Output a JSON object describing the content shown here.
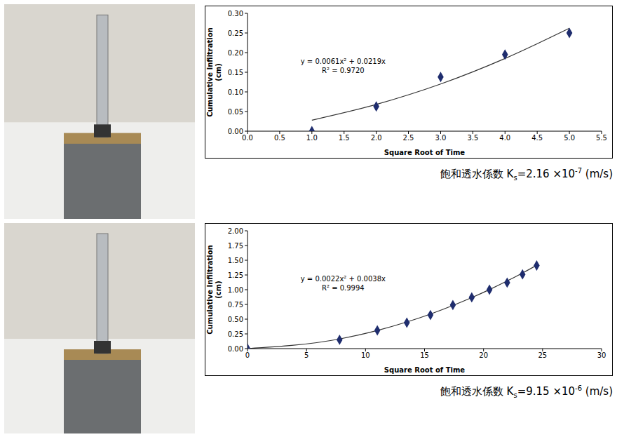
{
  "chart_data": [
    {
      "type": "scatter",
      "x_label": "Square Root of Time",
      "y_label": "Cumulative Infiltration (cm)",
      "x": [
        1,
        2,
        3,
        4,
        5
      ],
      "series": [
        {
          "type": "scatter",
          "color": "#1f2d6e",
          "marker": "diamond",
          "values": [
            0,
            0.063,
            0.138,
            0.195,
            0.25
          ]
        },
        {
          "type": "line",
          "color": "#333333",
          "line_style": "solid",
          "values": [
            0.028,
            0.068,
            0.12,
            0.185,
            0.262
          ]
        }
      ],
      "xlim": [
        0,
        5.5
      ],
      "xticks": [
        {
          "value": 0,
          "label": "0.0"
        },
        {
          "value": 0.5,
          "label": "0.5"
        },
        {
          "value": 1,
          "label": "1.0"
        },
        {
          "value": 1.5,
          "label": "1.5"
        },
        {
          "value": 2,
          "label": "2.0"
        },
        {
          "value": 2.5,
          "label": "2.5"
        },
        {
          "value": 3,
          "label": "3.0"
        },
        {
          "value": 3.5,
          "label": "3.5"
        },
        {
          "value": 4,
          "label": "4.0"
        },
        {
          "value": 4.5,
          "label": "4.5"
        },
        {
          "value": 5,
          "label": "5.0"
        },
        {
          "value": 5.5,
          "label": "5.5"
        }
      ],
      "ylim": [
        0,
        0.3
      ],
      "yticks": [
        {
          "value": 0,
          "label": "0.00"
        },
        {
          "value": 0.05,
          "label": "0.05"
        },
        {
          "value": 0.1,
          "label": "0.10"
        },
        {
          "value": 0.15,
          "label": "0.15"
        },
        {
          "value": 0.2,
          "label": "0.20"
        },
        {
          "value": 0.25,
          "label": "0.25"
        },
        {
          "value": 0.3,
          "label": "0.30"
        }
      ],
      "grid": false,
      "annotations": [
        "y = 0.0061x² + 0.0219x",
        "R² = 0.9720"
      ],
      "caption": {
        "prefix": "飽和透水係数 K",
        "sub": "s",
        "mid": "=2.16 ×10",
        "sup": "-7",
        "suffix": " (m/s)"
      }
    },
    {
      "type": "scatter",
      "x_label": "Square Root of Time",
      "y_label": "Cumulative Infiltration (cm)",
      "x": [
        0,
        7.8,
        11,
        13.5,
        15.5,
        17.4,
        19,
        20.5,
        22,
        23.3,
        24.5
      ],
      "series": [
        {
          "type": "scatter",
          "color": "#1f2d6e",
          "marker": "diamond",
          "values": [
            0,
            0.15,
            0.31,
            0.44,
            0.57,
            0.74,
            0.87,
            1.0,
            1.12,
            1.26,
            1.41
          ]
        },
        {
          "type": "line",
          "color": "#333333",
          "line_style": "solid",
          "values": [
            0,
            0.164,
            0.308,
            0.452,
            0.587,
            0.732,
            0.866,
            1.002,
            1.148,
            1.283,
            1.414
          ]
        }
      ],
      "xlim": [
        0,
        30
      ],
      "xticks": [
        0,
        5,
        10,
        15,
        20,
        25,
        30
      ],
      "ylim": [
        0,
        2
      ],
      "yticks": [
        {
          "value": 0,
          "label": "0.00"
        },
        {
          "value": 0.25,
          "label": "0.25"
        },
        {
          "value": 0.5,
          "label": "0.50"
        },
        {
          "value": 0.75,
          "label": "0.75"
        },
        {
          "value": 1,
          "label": "1.00"
        },
        {
          "value": 1.25,
          "label": "1.25"
        },
        {
          "value": 1.5,
          "label": "1.50"
        },
        {
          "value": 1.75,
          "label": "1.75"
        },
        {
          "value": 2,
          "label": "2.00"
        }
      ],
      "grid": false,
      "annotations": [
        "y = 0.0022x² + 0.0038x",
        "R² = 0.9994"
      ],
      "caption": {
        "prefix": "飽和透水係数 K",
        "sub": "s",
        "mid": "=9.15 ×10",
        "sup": "-6",
        "suffix": " (m/s)"
      }
    }
  ]
}
